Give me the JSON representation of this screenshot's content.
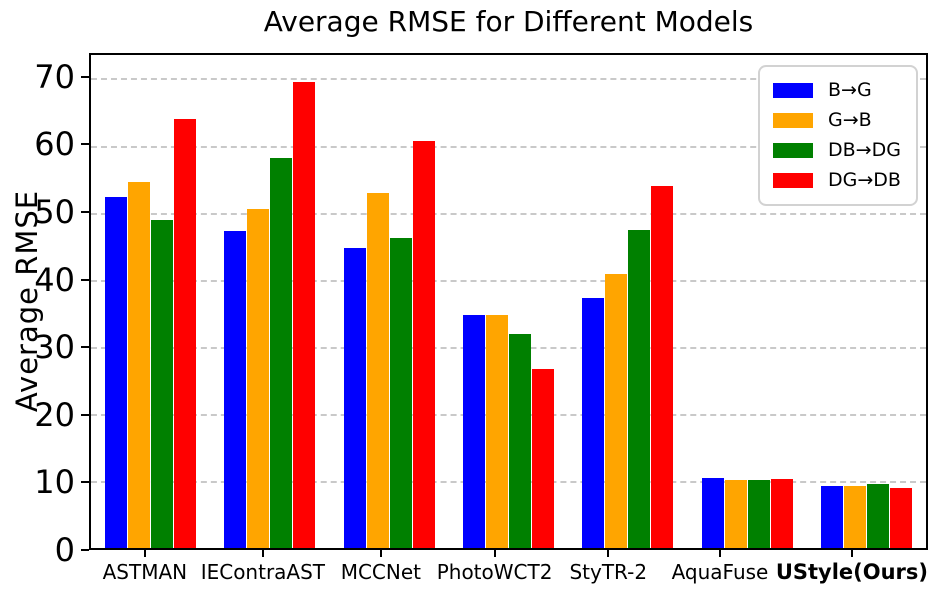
{
  "chart_data": {
    "type": "bar",
    "title": "Average RMSE for Different Models",
    "xlabel": "",
    "ylabel": "Average RMSE",
    "categories": [
      "ASTMAN",
      "IEContraAST",
      "MCCNet",
      "PhotoWCT2",
      "StyTR-2",
      "AquaFuse",
      "UStyle(Ours)"
    ],
    "series": [
      {
        "name": "B→G",
        "color": "#0000ff",
        "values": [
          52.3,
          47.3,
          44.7,
          34.8,
          37.2,
          10.4,
          9.3
        ]
      },
      {
        "name": "G→B",
        "color": "#ffa500",
        "values": [
          54.5,
          50.5,
          53.0,
          34.8,
          40.8,
          10.2,
          9.2
        ]
      },
      {
        "name": "DB→DG",
        "color": "#008000",
        "values": [
          48.9,
          58.1,
          46.2,
          31.9,
          47.4,
          10.1,
          9.5
        ]
      },
      {
        "name": "DG→DB",
        "color": "#ff0000",
        "values": [
          63.9,
          69.5,
          60.7,
          26.7,
          54.0,
          10.3,
          9.0
        ]
      }
    ],
    "ylim": [
      0,
      73.5
    ],
    "yticks": [
      0,
      10,
      20,
      30,
      40,
      50,
      60,
      70
    ],
    "grid": "horizontal-dashed",
    "gridline_color": "#c9c9c9",
    "legend_position": "upper-right",
    "bold_category": "UStyle(Ours)",
    "axis_color": "#000000",
    "background_color": "#ffffff"
  }
}
